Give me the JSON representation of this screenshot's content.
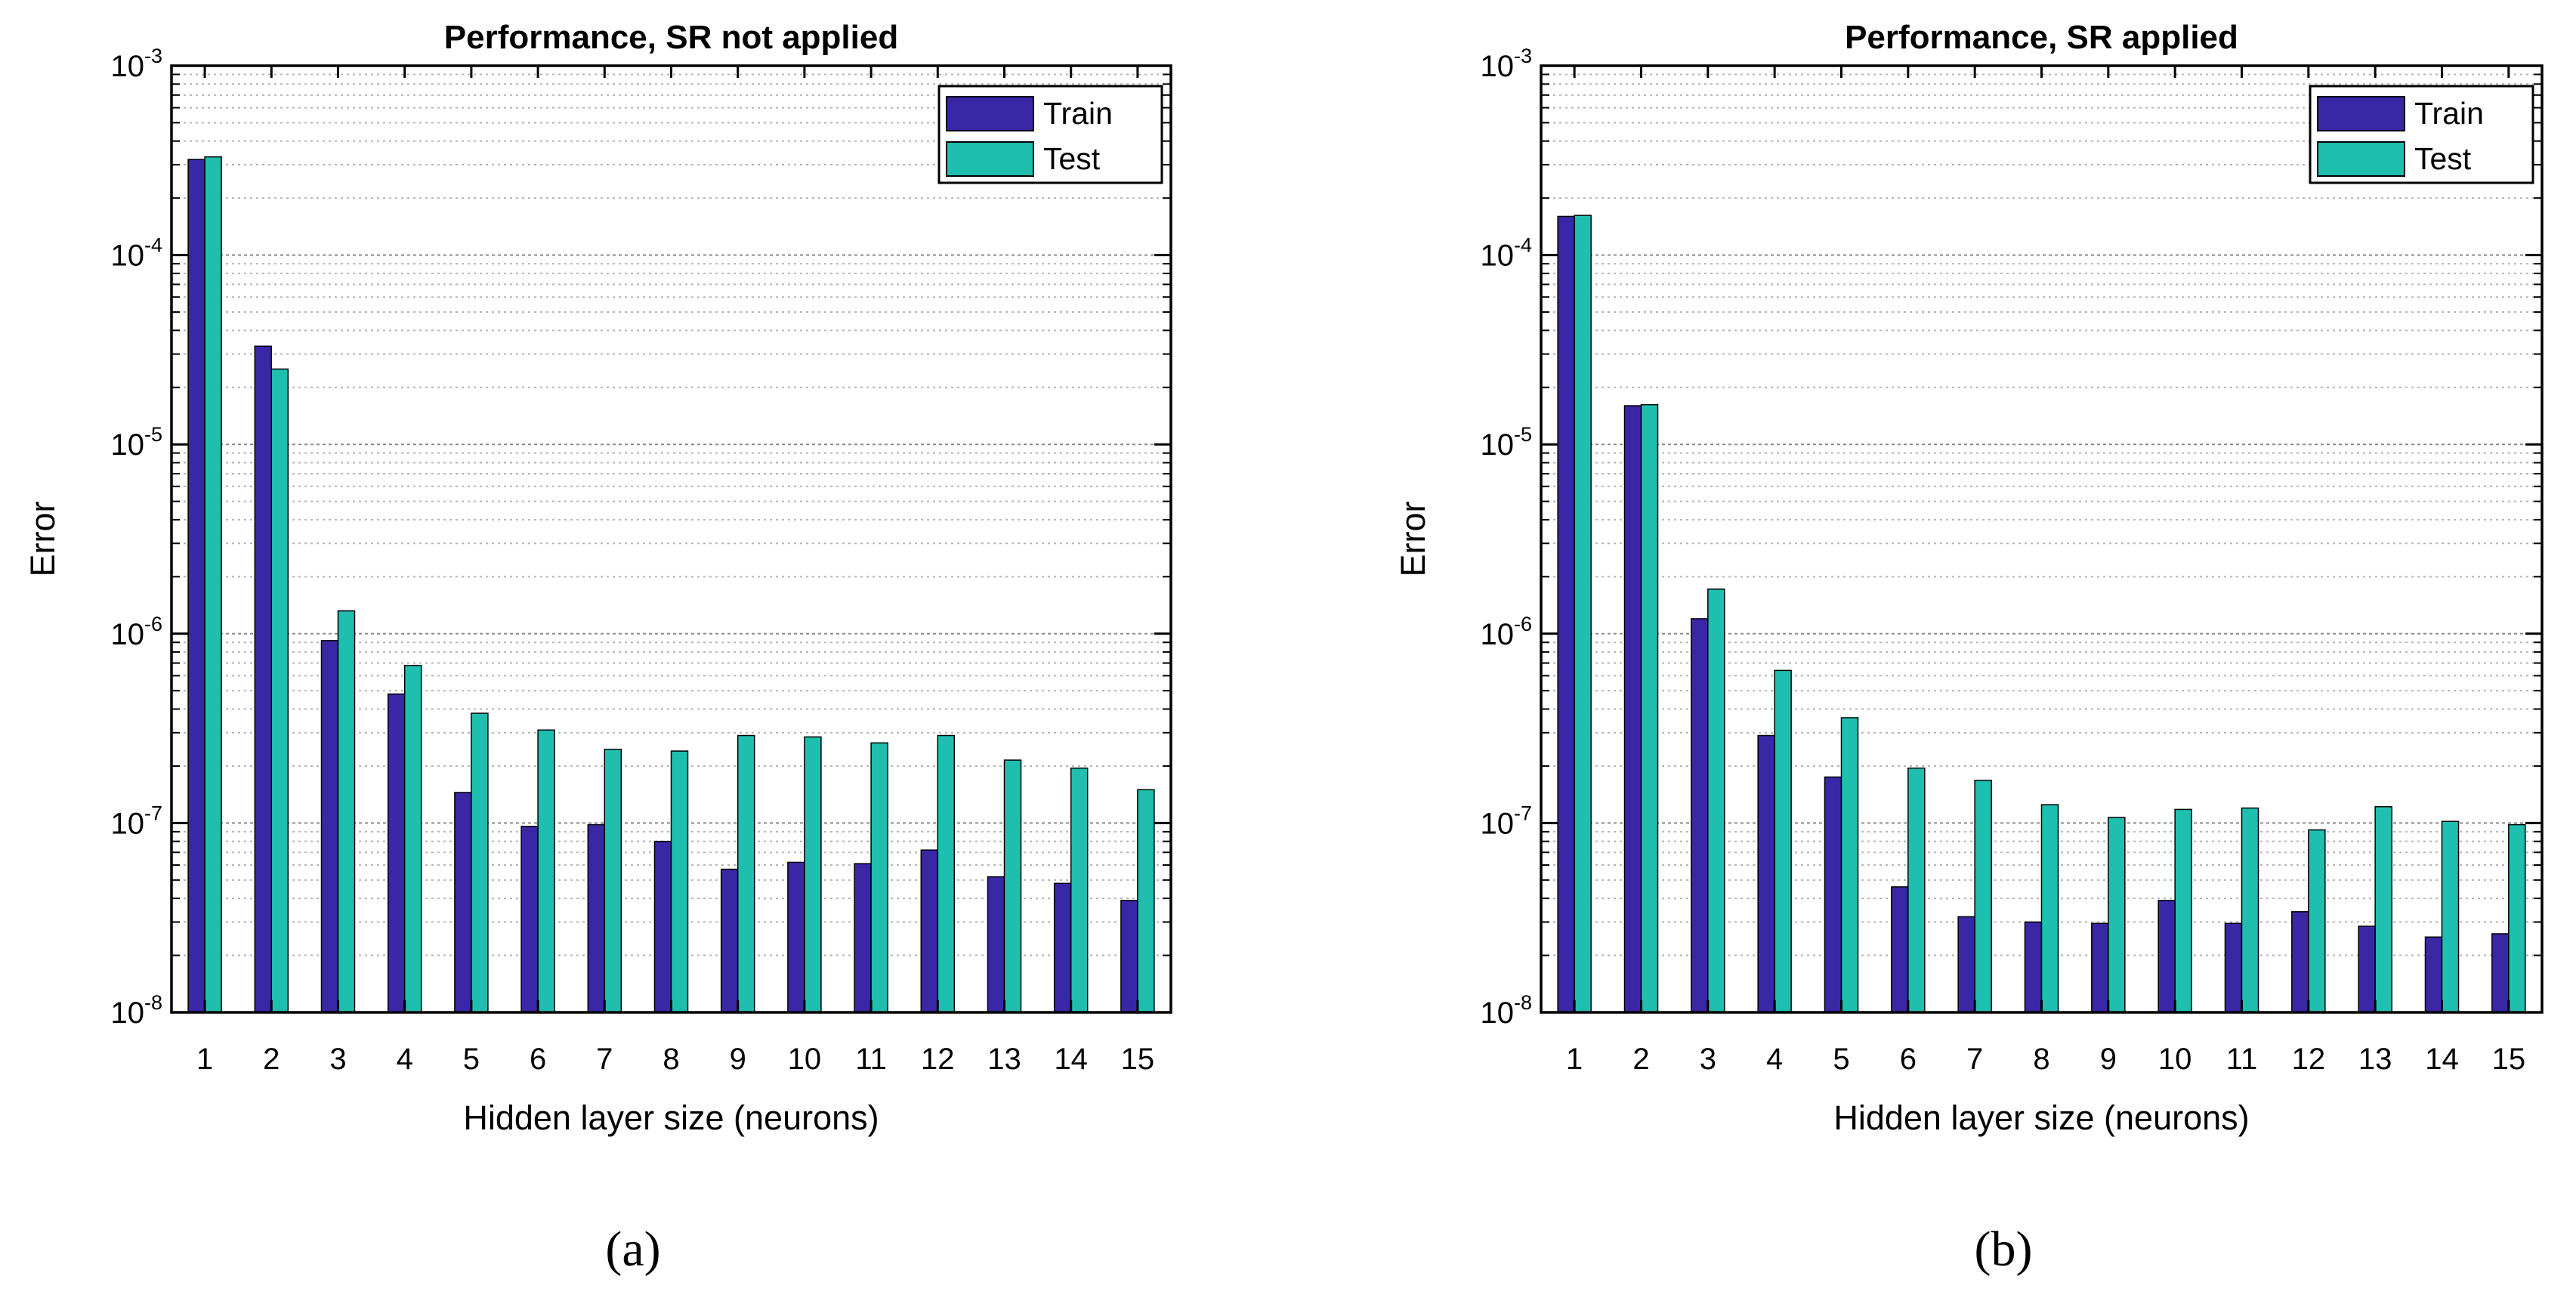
{
  "colors": {
    "train": "#3a27a6",
    "test": "#1fbfb0",
    "grid": "#b5b5b5"
  },
  "chart_data": [
    {
      "type": "bar",
      "panel": "(a)",
      "title": "Performance, SR not applied",
      "xlabel": "Hidden layer size (neurons)",
      "ylabel": "Error",
      "yscale": "log",
      "ylim": [
        1e-08,
        0.001
      ],
      "ytick_labels": [
        {
          "base": "10",
          "exp": "-8"
        },
        {
          "base": "10",
          "exp": "-7"
        },
        {
          "base": "10",
          "exp": "-6"
        },
        {
          "base": "10",
          "exp": "-5"
        },
        {
          "base": "10",
          "exp": "-4"
        },
        {
          "base": "10",
          "exp": "-3"
        }
      ],
      "legend": [
        "Train",
        "Test"
      ],
      "legend_position": "top-right",
      "categories": [
        "1",
        "2",
        "3",
        "4",
        "5",
        "6",
        "7",
        "8",
        "9",
        "10",
        "11",
        "12",
        "13",
        "14",
        "15"
      ],
      "series": [
        {
          "name": "Train",
          "values": [
            0.00032,
            3.3e-05,
            9.2e-07,
            4.8e-07,
            1.45e-07,
            9.6e-08,
            9.8e-08,
            8e-08,
            5.7e-08,
            6.2e-08,
            6.1e-08,
            7.2e-08,
            5.2e-08,
            4.8e-08,
            3.9e-08
          ]
        },
        {
          "name": "Test",
          "values": [
            0.00033,
            2.5e-05,
            1.32e-06,
            6.8e-07,
            3.8e-07,
            3.1e-07,
            2.45e-07,
            2.4e-07,
            2.9e-07,
            2.85e-07,
            2.65e-07,
            2.9e-07,
            2.15e-07,
            1.95e-07,
            1.5e-07
          ]
        }
      ]
    },
    {
      "type": "bar",
      "panel": "(b)",
      "title": "Performance, SR applied",
      "xlabel": "Hidden layer size (neurons)",
      "ylabel": "Error",
      "yscale": "log",
      "ylim": [
        1e-08,
        0.001
      ],
      "ytick_labels": [
        {
          "base": "10",
          "exp": "-8"
        },
        {
          "base": "10",
          "exp": "-7"
        },
        {
          "base": "10",
          "exp": "-6"
        },
        {
          "base": "10",
          "exp": "-5"
        },
        {
          "base": "10",
          "exp": "-4"
        },
        {
          "base": "10",
          "exp": "-3"
        }
      ],
      "legend": [
        "Train",
        "Test"
      ],
      "legend_position": "top-right",
      "categories": [
        "1",
        "2",
        "3",
        "4",
        "5",
        "6",
        "7",
        "8",
        "9",
        "10",
        "11",
        "12",
        "13",
        "14",
        "15"
      ],
      "series": [
        {
          "name": "Train",
          "values": [
            0.00016,
            1.6e-05,
            1.2e-06,
            2.9e-07,
            1.75e-07,
            4.6e-08,
            3.2e-08,
            3e-08,
            2.95e-08,
            3.9e-08,
            2.95e-08,
            3.4e-08,
            2.85e-08,
            2.5e-08,
            2.6e-08
          ]
        },
        {
          "name": "Test",
          "values": [
            0.000162,
            1.62e-05,
            1.72e-06,
            6.4e-07,
            3.6e-07,
            1.95e-07,
            1.68e-07,
            1.25e-07,
            1.07e-07,
            1.18e-07,
            1.2e-07,
            9.2e-08,
            1.22e-07,
            1.02e-07,
            9.8e-08
          ]
        }
      ]
    }
  ]
}
